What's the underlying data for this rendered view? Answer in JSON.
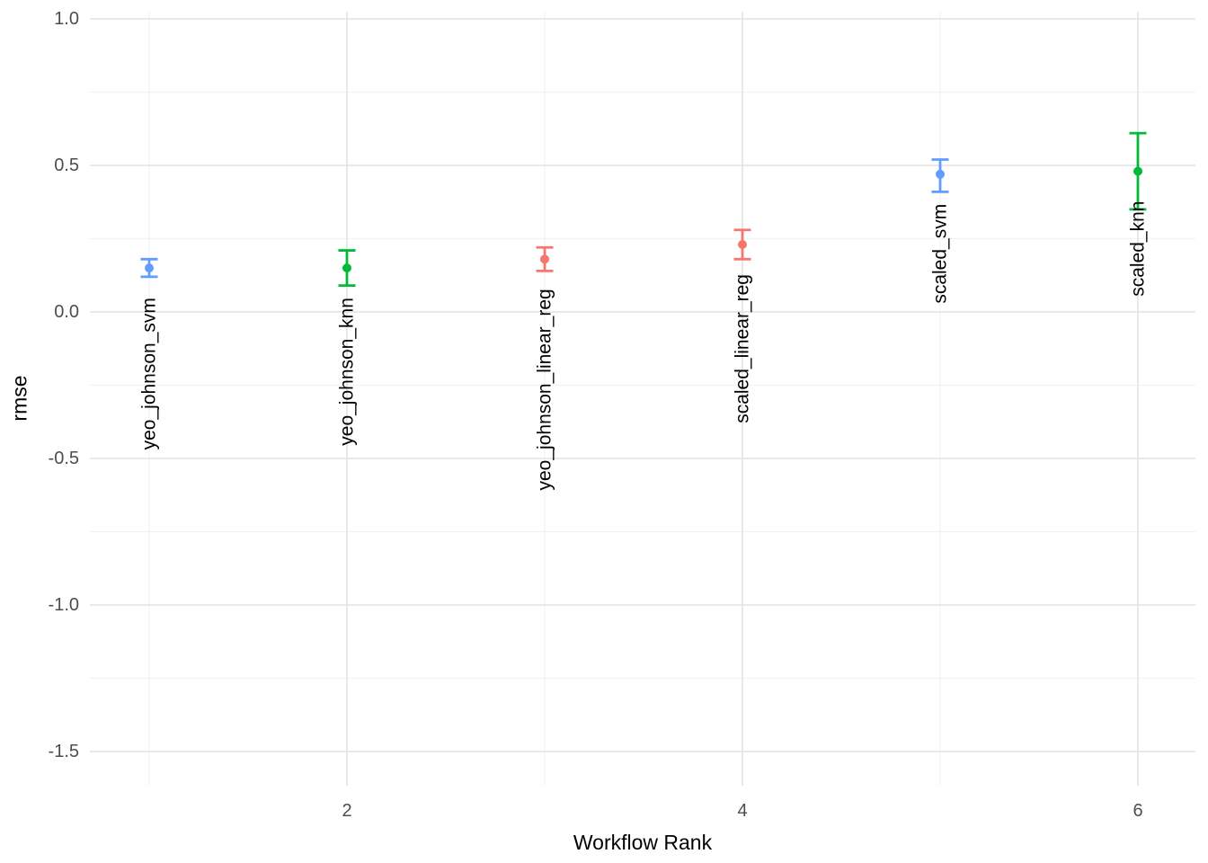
{
  "chart_data": {
    "type": "scatter",
    "title": "",
    "xlabel": "Workflow Rank",
    "ylabel": "rmse",
    "legend": "none",
    "grid": "major-and-minor",
    "background": "#ffffff",
    "grid_major_color": "#e6e6e6",
    "grid_minor_color": "#f2f2f2",
    "tick_label_color": "#4d4d4d",
    "x_axis": {
      "tick_values": [
        2,
        4,
        6
      ],
      "tick_labels": [
        "2",
        "4",
        "6"
      ],
      "minor_tick_values": [
        1,
        3,
        5
      ],
      "range_shown": [
        0.7,
        6.3
      ]
    },
    "y_axis": {
      "tick_values": [
        1.0,
        0.5,
        0.0,
        -0.5,
        -1.0,
        -1.5
      ],
      "tick_labels": [
        "1.0",
        "0.5",
        "0.0",
        "-0.5",
        "-1.0",
        "-1.5"
      ],
      "minor_tick_values": [
        0.75,
        0.25,
        -0.25,
        -0.75,
        -1.25
      ],
      "range_shown": [
        1.04,
        -1.62
      ]
    },
    "model_colors": {
      "svm": "#619CFF",
      "knn": "#00BA38",
      "linear_reg": "#F8766D"
    },
    "points": [
      {
        "label": "yeo_johnson_svm",
        "rank": 1,
        "model": "svm",
        "mean": 0.15,
        "lower": 0.12,
        "upper": 0.18
      },
      {
        "label": "yeo_johnson_knn",
        "rank": 2,
        "model": "knn",
        "mean": 0.15,
        "lower": 0.09,
        "upper": 0.21
      },
      {
        "label": "yeo_johnson_linear_reg",
        "rank": 3,
        "model": "linear_reg",
        "mean": 0.18,
        "lower": 0.14,
        "upper": 0.22
      },
      {
        "label": "scaled_linear_reg",
        "rank": 4,
        "model": "linear_reg",
        "mean": 0.23,
        "lower": 0.18,
        "upper": 0.28
      },
      {
        "label": "scaled_svm",
        "rank": 5,
        "model": "svm",
        "mean": 0.47,
        "lower": 0.41,
        "upper": 0.52
      },
      {
        "label": "scaled_knn",
        "rank": 6,
        "model": "knn",
        "mean": 0.48,
        "lower": 0.35,
        "upper": 0.61
      }
    ]
  }
}
